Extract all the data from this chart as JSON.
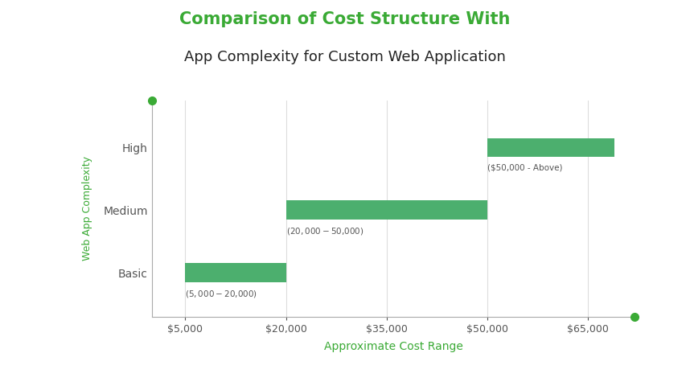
{
  "title_line1": "Comparison of Cost Structure With",
  "title_line2": "App Complexity for Custom Web Application",
  "title_line1_color": "#3aaa35",
  "title_line2_color": "#222222",
  "xlabel": "Approximate Cost Range",
  "ylabel": "Web App Complexity",
  "xlabel_color": "#3aaa35",
  "ylabel_color": "#3aaa35",
  "categories": [
    "Basic",
    "Medium",
    "High"
  ],
  "bar_starts": [
    5000,
    20000,
    50000
  ],
  "bar_ends": [
    20000,
    50000,
    69000
  ],
  "bar_color": "#4caf6e",
  "bar_height": 0.3,
  "annotations": [
    "($5,000 - $20,000)",
    "($20,000 - $50,000)",
    "($50,000 - Above)"
  ],
  "xlim": [
    0,
    72000
  ],
  "xticks": [
    5000,
    20000,
    35000,
    50000,
    65000
  ],
  "xtick_labels": [
    "$5,000",
    "$20,000",
    "$35,000",
    "$50,000",
    "$65,000"
  ],
  "background_color": "#ffffff",
  "grid_color": "#dddddd",
  "axis_color": "#aaaaaa",
  "dot_color": "#3aaa35",
  "dot_size": 55,
  "title1_fontsize": 15,
  "title2_fontsize": 13,
  "ylabel_fontsize": 9,
  "xlabel_fontsize": 10,
  "ytick_fontsize": 10,
  "xtick_fontsize": 9,
  "ann_fontsize": 7.5
}
